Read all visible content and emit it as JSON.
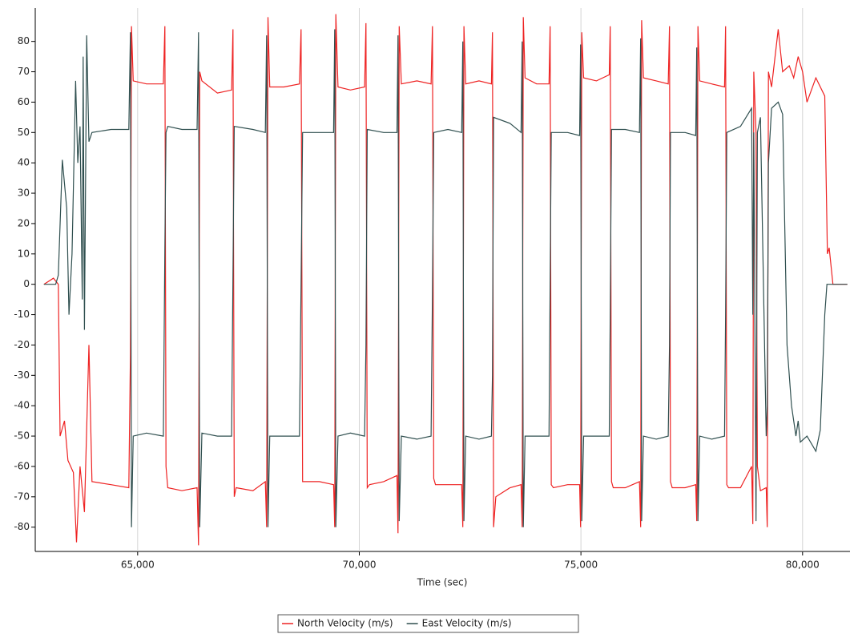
{
  "chart_data": {
    "type": "line",
    "x_label": "Time (sec)",
    "xlim": [
      62690,
      81070
    ],
    "ylim": [
      -88,
      91
    ],
    "xticks": [
      {
        "value": 65000,
        "label": "65,000"
      },
      {
        "value": 70000,
        "label": "70,000"
      },
      {
        "value": 75000,
        "label": "75,000"
      },
      {
        "value": 80000,
        "label": "80,000"
      }
    ],
    "yticks": [
      -80,
      -70,
      -60,
      -50,
      -40,
      -30,
      -20,
      -10,
      0,
      10,
      20,
      30,
      40,
      50,
      60,
      70,
      80
    ],
    "grid": "x",
    "legend": "bottom",
    "series": [
      {
        "name": "North Velocity (m/s)",
        "color": "#ee2222",
        "x": [
          62886,
          63100,
          63211,
          63250,
          63350,
          63428,
          63550,
          63620,
          63700,
          63800,
          63900,
          63970,
          64400,
          64800,
          64837,
          64860,
          64900,
          65200,
          65580,
          65614,
          65640,
          65680,
          66000,
          66340,
          66373,
          66400,
          66450,
          66800,
          67120,
          67150,
          67180,
          67220,
          67600,
          67880,
          67909,
          67940,
          67980,
          68300,
          68650,
          68686,
          68720,
          68760,
          69100,
          69420,
          69445,
          69470,
          69520,
          69800,
          70120,
          70150,
          70180,
          70230,
          70550,
          70850,
          70873,
          70900,
          70950,
          71300,
          71620,
          71650,
          71680,
          71720,
          72000,
          72310,
          72336,
          72360,
          72400,
          72700,
          72980,
          73005,
          73030,
          73080,
          73400,
          73650,
          73674,
          73700,
          73740,
          74000,
          74280,
          74306,
          74330,
          74380,
          74700,
          74970,
          74993,
          75020,
          75060,
          75350,
          75640,
          75661,
          75690,
          75730,
          76000,
          76320,
          76348,
          76370,
          76410,
          76700,
          76970,
          76998,
          77020,
          77060,
          77350,
          77590,
          77613,
          77640,
          77680,
          77950,
          78240,
          78263,
          78290,
          78330,
          78600,
          78850,
          78878,
          78900,
          78950,
          78980,
          79050,
          79180,
          79203,
          79230,
          79300,
          79450,
          79550,
          79700,
          79800,
          79900,
          80000,
          80100,
          80300,
          80500,
          80560,
          80600,
          80685,
          81010
        ],
        "values": [
          0,
          2,
          0,
          -50,
          -45,
          -58,
          -62,
          -85,
          -60,
          -75,
          -20,
          -65,
          -66,
          -67,
          -23,
          85,
          67,
          66,
          66,
          85,
          -60,
          -67,
          -68,
          -67,
          -86,
          70,
          67,
          63,
          64,
          84,
          -70,
          -67,
          -68,
          -65,
          -80,
          88,
          65,
          65,
          66,
          84,
          -65,
          -65,
          -65,
          -66,
          -80,
          89,
          65,
          64,
          65,
          86,
          -67,
          -66,
          -65,
          -63,
          -82,
          85,
          66,
          67,
          66,
          85,
          -64,
          -66,
          -66,
          -66,
          -80,
          85,
          66,
          67,
          66,
          83,
          -80,
          -70,
          -67,
          -66,
          -80,
          88,
          68,
          66,
          66,
          85,
          -66,
          -67,
          -66,
          -66,
          -80,
          83,
          68,
          67,
          69,
          85,
          -65,
          -67,
          -67,
          -65,
          -80,
          87,
          68,
          67,
          66,
          85,
          -65,
          -67,
          -67,
          -66,
          -78,
          85,
          67,
          66,
          65,
          85,
          -66,
          -67,
          -67,
          -60,
          -79,
          70,
          50,
          -60,
          -68,
          -67,
          -80,
          70,
          65,
          84,
          70,
          72,
          68,
          75,
          70,
          60,
          68,
          62,
          10,
          12,
          0,
          0
        ]
      },
      {
        "name": "East Velocity (m/s)",
        "color": "#2f4f4f",
        "x": [
          62886,
          63150,
          63211,
          63300,
          63400,
          63450,
          63520,
          63600,
          63650,
          63700,
          63750,
          63770,
          63800,
          63850,
          63900,
          63970,
          64400,
          64800,
          64837,
          64860,
          64900,
          65200,
          65580,
          65614,
          65640,
          65680,
          66000,
          66340,
          66373,
          66400,
          66450,
          66800,
          67120,
          67150,
          67180,
          67600,
          67880,
          67909,
          67940,
          67980,
          68300,
          68650,
          68686,
          68720,
          69100,
          69420,
          69445,
          69470,
          69520,
          69800,
          70120,
          70150,
          70180,
          70550,
          70850,
          70873,
          70900,
          70950,
          71300,
          71620,
          71650,
          71680,
          72000,
          72310,
          72336,
          72360,
          72400,
          72700,
          72980,
          73005,
          73030,
          73400,
          73650,
          73674,
          73700,
          73740,
          74000,
          74280,
          74306,
          74330,
          74700,
          74970,
          74993,
          75020,
          75060,
          75350,
          75640,
          75661,
          75690,
          76000,
          76320,
          76348,
          76370,
          76410,
          76700,
          76970,
          76998,
          77020,
          77350,
          77590,
          77613,
          77640,
          77680,
          77950,
          78240,
          78263,
          78290,
          78600,
          78850,
          78878,
          78900,
          78950,
          78980,
          79050,
          79180,
          79203,
          79230,
          79300,
          79450,
          79550,
          79650,
          79750,
          79850,
          79900,
          79950,
          80100,
          80300,
          80400,
          80500,
          80550,
          81010
        ],
        "values": [
          0,
          0,
          3,
          41,
          25,
          -10,
          10,
          67,
          40,
          52,
          -5,
          75,
          -15,
          82,
          47,
          50,
          51,
          51,
          83,
          -80,
          -50,
          -49,
          -50,
          12,
          50,
          52,
          51,
          51,
          83,
          -80,
          -49,
          -50,
          -50,
          3,
          52,
          51,
          50,
          82,
          -80,
          -50,
          -50,
          -50,
          0,
          50,
          50,
          50,
          84,
          -80,
          -50,
          -49,
          -50,
          -20,
          51,
          50,
          50,
          82,
          -78,
          -50,
          -51,
          -50,
          -3,
          50,
          51,
          50,
          80,
          -78,
          -50,
          -51,
          -50,
          -30,
          55,
          53,
          50,
          80,
          -80,
          -50,
          -50,
          -50,
          0,
          50,
          50,
          49,
          79,
          -78,
          -50,
          -50,
          -50,
          -10,
          51,
          51,
          50,
          81,
          -78,
          -50,
          -51,
          -50,
          -20,
          50,
          50,
          49,
          78,
          -78,
          -50,
          -51,
          -50,
          -10,
          50,
          52,
          58,
          -10,
          50,
          -78,
          50,
          55,
          -50,
          -40,
          40,
          58,
          60,
          56,
          -20,
          -40,
          -50,
          -45,
          -52,
          -50,
          -55,
          -48,
          -10,
          0,
          0
        ]
      }
    ]
  }
}
